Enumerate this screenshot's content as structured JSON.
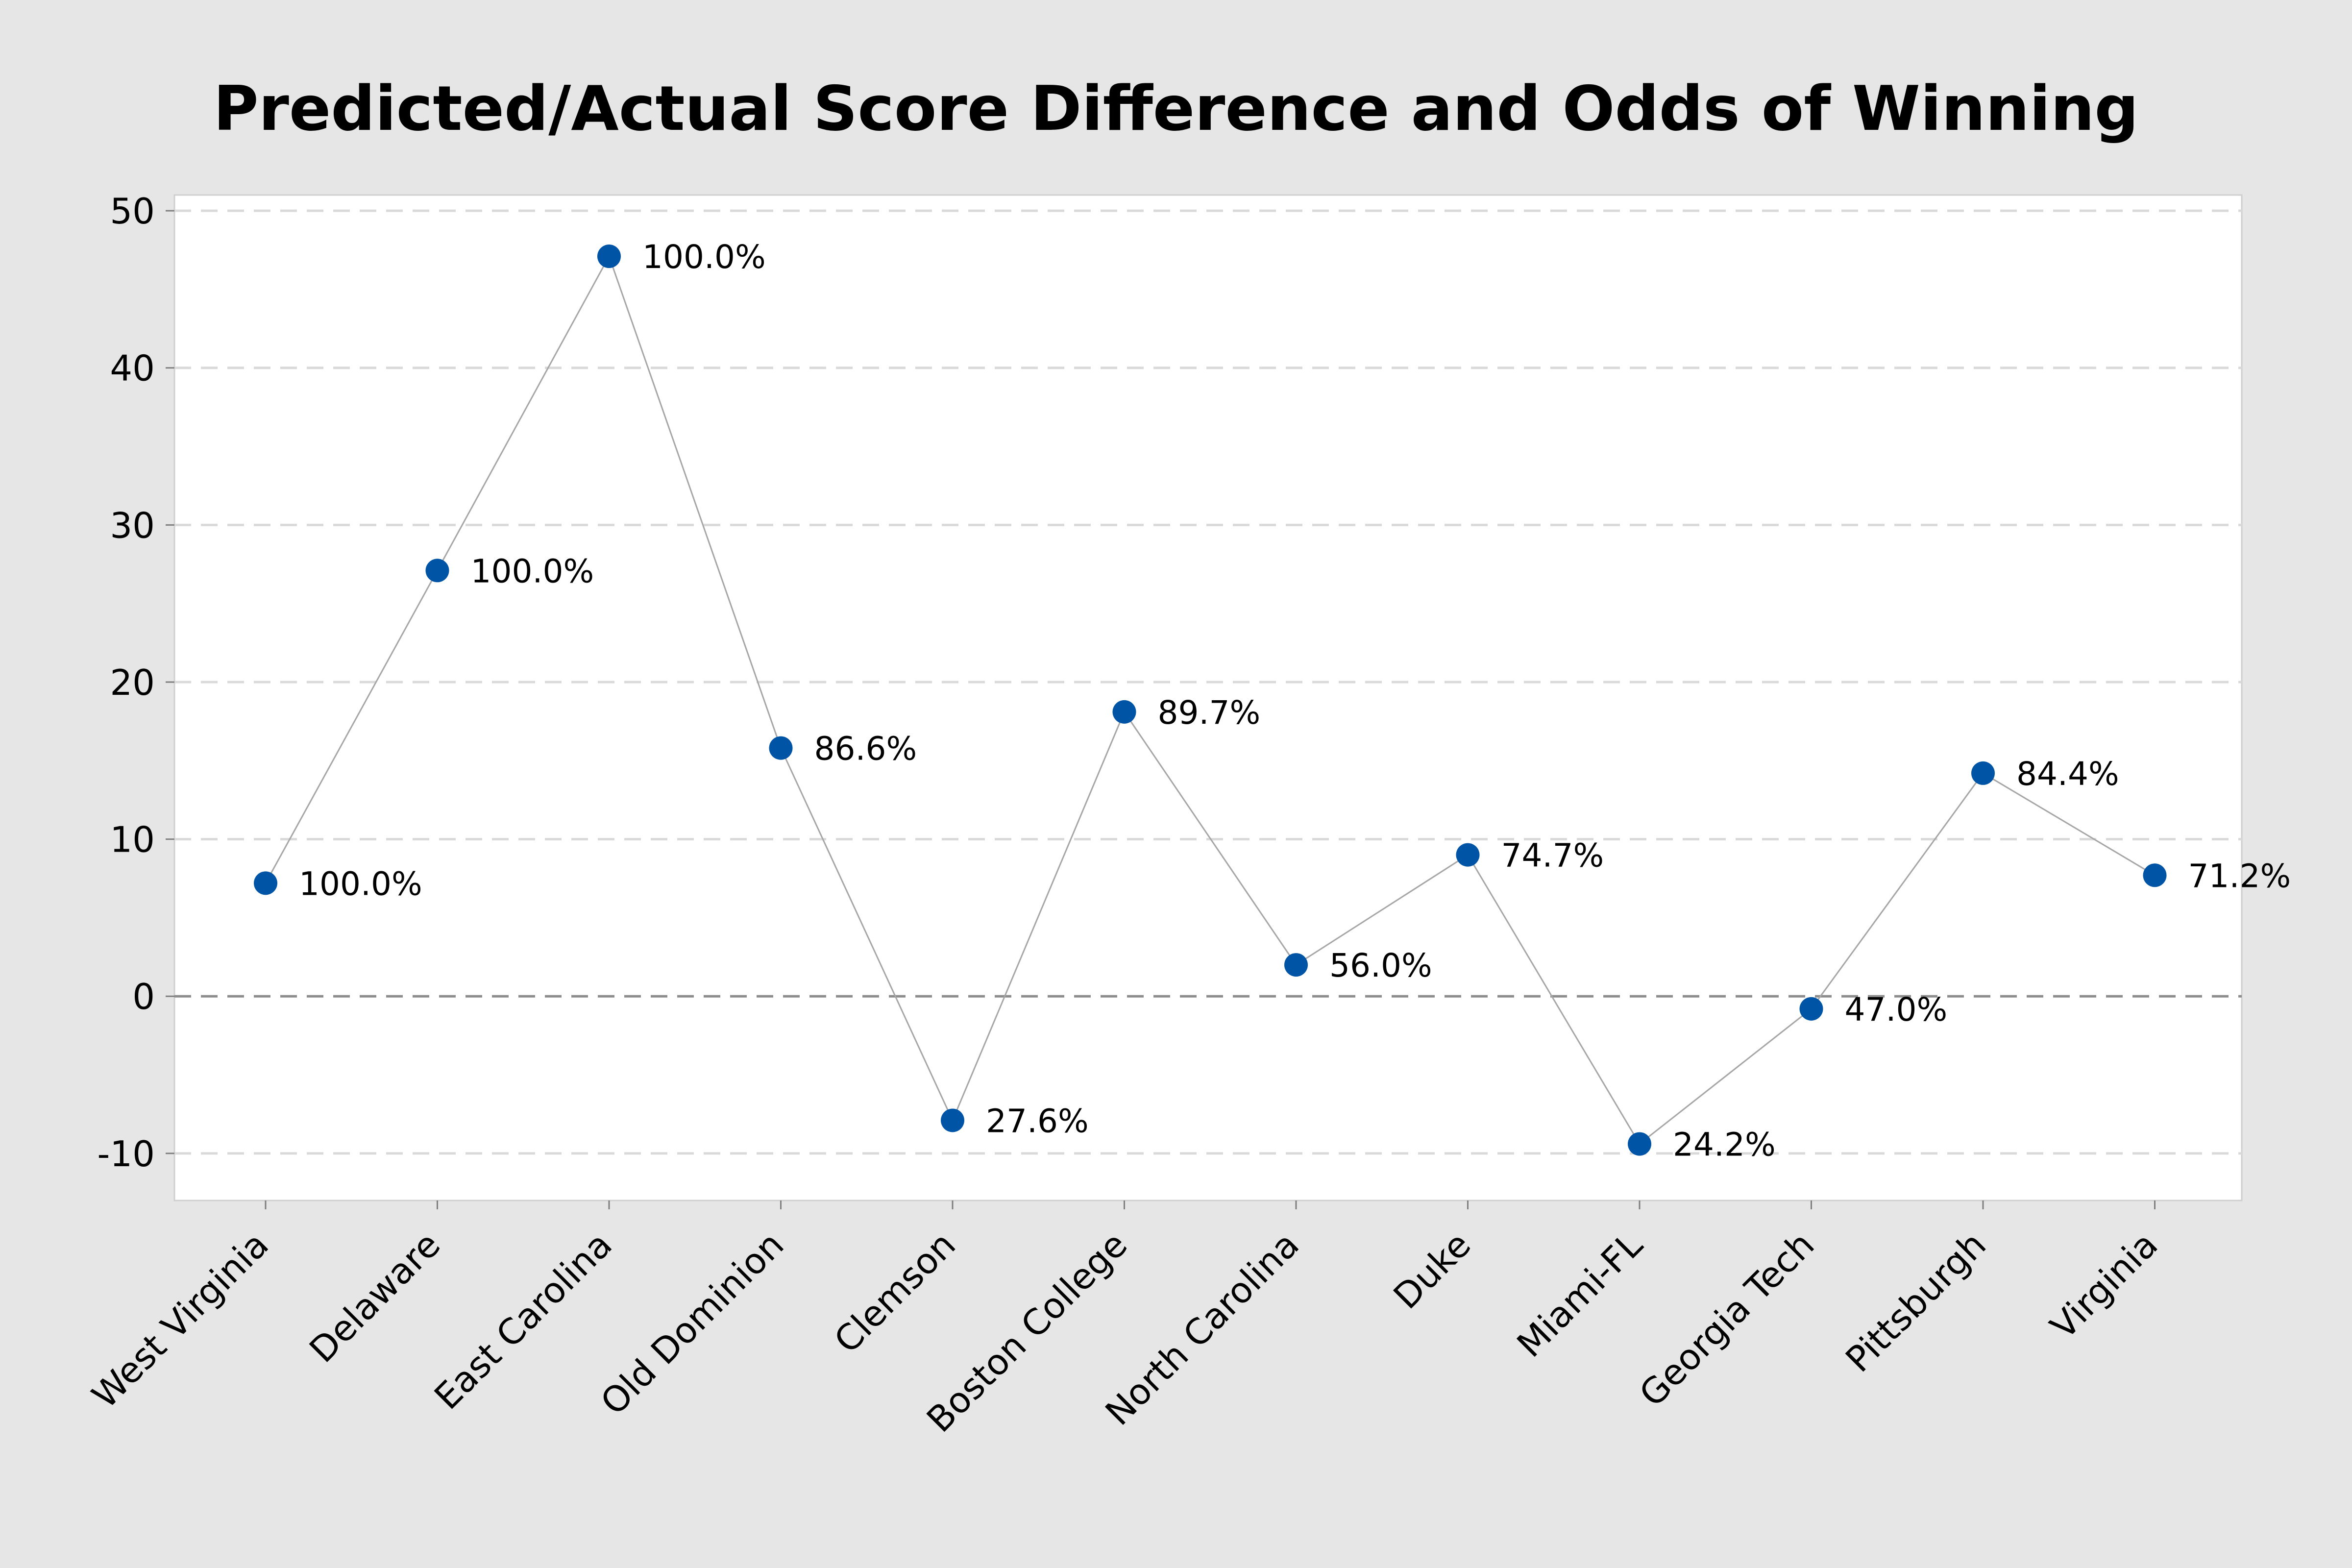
{
  "chart_data": {
    "type": "line",
    "title": "Predicted/Actual Score Difference and Odds of Winning",
    "xlabel": "",
    "ylabel": "",
    "categories": [
      "West Virginia",
      "Delaware",
      "East Carolina",
      "Old Dominion",
      "Clemson",
      "Boston College",
      "North Carolina",
      "Duke",
      "Miami-FL",
      "Georgia Tech",
      "Pittsburgh",
      "Virginia"
    ],
    "series": [
      {
        "values": [
          7.2,
          27.1,
          47.1,
          15.8,
          -7.9,
          18.1,
          2.0,
          9.0,
          -9.4,
          -0.8,
          14.2,
          7.7
        ],
        "labels": [
          "100.0%",
          "100.0%",
          "100.0%",
          "86.6%",
          "27.6%",
          "89.7%",
          "56.0%",
          "74.7%",
          "24.2%",
          "47.0%",
          "84.4%",
          "71.2%"
        ]
      }
    ],
    "ylim": [
      -13,
      51
    ],
    "yticks": [
      -10,
      0,
      10,
      20,
      30,
      40,
      50
    ],
    "ytick_labels": [
      "-10",
      "0",
      "10",
      "20",
      "30",
      "40",
      "50"
    ],
    "reference_line": 0,
    "grid": true,
    "legend": "none",
    "colors": {
      "background": "#e6e6e6",
      "plot_background": "#ffffff",
      "marker": "#0054a6",
      "line": "#a6a6a6",
      "gridline": "#d9d9d9",
      "reference_line": "#8c8c8c"
    }
  }
}
